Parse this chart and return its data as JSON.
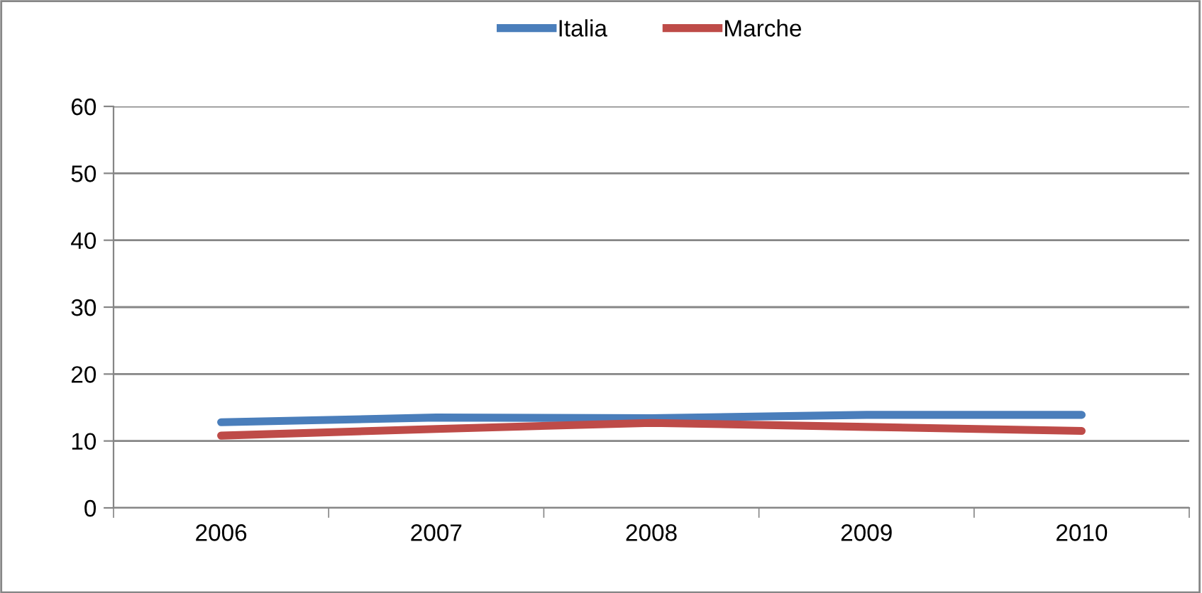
{
  "chart_data": {
    "type": "line",
    "categories": [
      "2006",
      "2007",
      "2008",
      "2009",
      "2010"
    ],
    "series": [
      {
        "name": "Italia",
        "color": "#4a7ebb",
        "values": [
          12.8,
          13.5,
          13.4,
          13.9,
          13.9
        ]
      },
      {
        "name": "Marche",
        "color": "#be4b48",
        "values": [
          10.8,
          11.8,
          12.7,
          12.1,
          11.5
        ]
      }
    ],
    "ylim": [
      0,
      60
    ],
    "yticks": [
      0,
      10,
      20,
      30,
      40,
      50,
      60
    ],
    "grid": "y",
    "legend": "top",
    "marker": "none",
    "line_style": "solid"
  }
}
